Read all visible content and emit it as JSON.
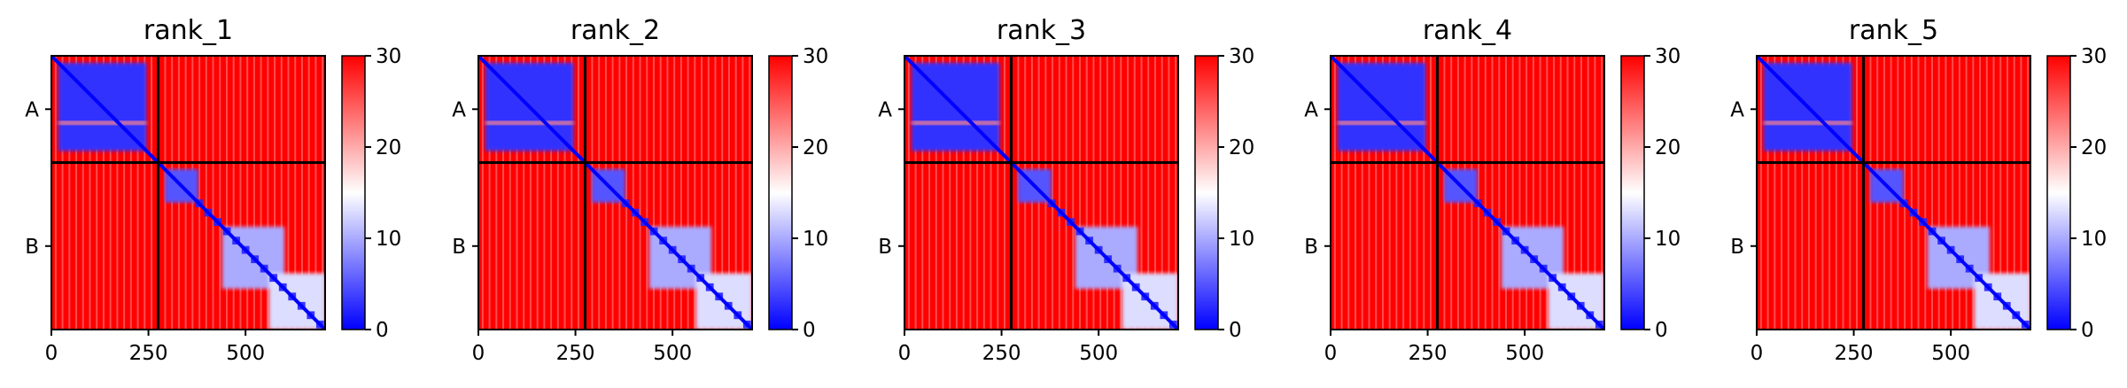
{
  "chart_data": {
    "type": "heatmap",
    "panels": [
      {
        "title": "rank_1"
      },
      {
        "title": "rank_2"
      },
      {
        "title": "rank_3"
      },
      {
        "title": "rank_4"
      },
      {
        "title": "rank_5"
      }
    ],
    "x_ticks": [
      "0",
      "250",
      "500"
    ],
    "x_tick_values": [
      0,
      250,
      500
    ],
    "x_range": [
      0,
      705
    ],
    "chain_labels": [
      "A",
      "B"
    ],
    "chain_boundary": 275,
    "colorbar": {
      "min": 0,
      "max": 30,
      "ticks": [
        "0",
        "10",
        "20",
        "30"
      ],
      "tick_values": [
        0,
        10,
        20,
        30
      ],
      "colors": [
        "#0000ff",
        "#ffffff",
        "#ff0000"
      ]
    },
    "regions": [
      {
        "name": "chain-A-domain",
        "x": [
          18,
          245
        ],
        "y": [
          18,
          245
        ],
        "value": 3
      },
      {
        "name": "chain-A-gap",
        "x": [
          18,
          245
        ],
        "y": [
          168,
          178
        ],
        "value": 22
      },
      {
        "name": "chain-B-small-domain",
        "x": [
          292,
          378
        ],
        "y": [
          292,
          378
        ],
        "value": 5
      },
      {
        "name": "chain-B-main-block",
        "x": [
          440,
          600
        ],
        "y": [
          440,
          600
        ],
        "value": 10
      },
      {
        "name": "chain-B-lower-block",
        "x": [
          560,
          705
        ],
        "y": [
          560,
          705
        ],
        "value": 13
      }
    ],
    "grid": false
  }
}
